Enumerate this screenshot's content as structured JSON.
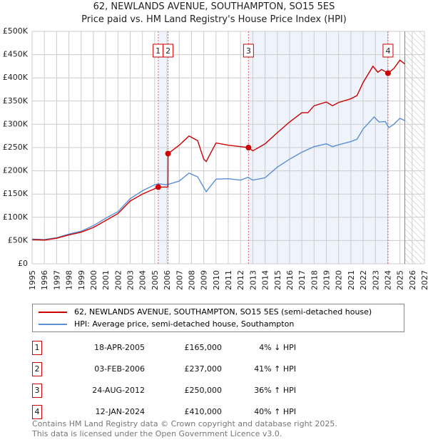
{
  "chart_data": {
    "type": "line",
    "title": "62, NEWLANDS AVENUE, SOUTHAMPTON, SO15 5ES",
    "subtitle": "Price paid vs. HM Land Registry's House Price Index (HPI)",
    "xlim": [
      1995,
      2027
    ],
    "ylim": [
      0,
      500000
    ],
    "x_ticks": [
      "1995",
      "1996",
      "1997",
      "1998",
      "1999",
      "2000",
      "2001",
      "2002",
      "2003",
      "2004",
      "2005",
      "2006",
      "2007",
      "2008",
      "2009",
      "2010",
      "2011",
      "2012",
      "2013",
      "2014",
      "2015",
      "2016",
      "2017",
      "2018",
      "2019",
      "2020",
      "2021",
      "2022",
      "2023",
      "2024",
      "2025",
      "2026",
      "2027"
    ],
    "y_ticks": [
      {
        "v": 0,
        "l": "£0"
      },
      {
        "v": 50000,
        "l": "£50K"
      },
      {
        "v": 100000,
        "l": "£100K"
      },
      {
        "v": 150000,
        "l": "£150K"
      },
      {
        "v": 200000,
        "l": "£200K"
      },
      {
        "v": 250000,
        "l": "£250K"
      },
      {
        "v": 300000,
        "l": "£300K"
      },
      {
        "v": 350000,
        "l": "£350K"
      },
      {
        "v": 400000,
        "l": "£400K"
      },
      {
        "v": 450000,
        "l": "£450K"
      },
      {
        "v": 500000,
        "l": "£500K"
      }
    ],
    "grid": true,
    "series": [
      {
        "name": "62, NEWLANDS AVENUE, SOUTHAMPTON, SO15 5ES (semi-detached house)",
        "color": "#cc0000",
        "x": [
          1995,
          1996,
          1997,
          1998,
          1999,
          2000,
          2001,
          2002,
          2003,
          2004,
          2005.3,
          2006.08,
          2006.09,
          2007,
          2007.8,
          2008.5,
          2009.0,
          2009.2,
          2010,
          2011,
          2012,
          2012.65,
          2013,
          2014,
          2015,
          2016,
          2017,
          2017.5,
          2018,
          2019,
          2019.5,
          2020,
          2021,
          2021.5,
          2022,
          2022.8,
          2023.2,
          2023.5,
          2024.04,
          2024.5,
          2025,
          2025.4
        ],
        "y": [
          52000,
          51000,
          55000,
          62000,
          68000,
          78000,
          93000,
          108000,
          135000,
          150000,
          165000,
          165000,
          237000,
          255000,
          275000,
          265000,
          225000,
          220000,
          260000,
          255000,
          252000,
          250000,
          243000,
          258000,
          282000,
          305000,
          325000,
          325000,
          340000,
          348000,
          340000,
          347000,
          355000,
          362000,
          390000,
          425000,
          412000,
          418000,
          410000,
          420000,
          438000,
          430000
        ]
      },
      {
        "name": "HPI: Average price, semi-detached house, Southampton",
        "color": "#5b8fd4",
        "x": [
          1995,
          1996,
          1997,
          1998,
          1999,
          2000,
          2001,
          2002,
          2003,
          2004,
          2005,
          2005.3,
          2006,
          2007,
          2007.8,
          2008.5,
          2009.2,
          2010,
          2011,
          2012,
          2012.6,
          2013,
          2014,
          2015,
          2016,
          2017,
          2018,
          2019,
          2019.5,
          2020,
          2021,
          2021.5,
          2022,
          2022.9,
          2023.3,
          2023.8,
          2024.1,
          2024.5,
          2025,
          2025.4
        ],
        "y": [
          53000,
          52000,
          56000,
          64000,
          70000,
          82000,
          98000,
          112000,
          140000,
          157000,
          170000,
          172000,
          170000,
          178000,
          195000,
          187000,
          155000,
          182000,
          183000,
          180000,
          186000,
          180000,
          185000,
          208000,
          225000,
          240000,
          252000,
          258000,
          252000,
          256000,
          263000,
          268000,
          290000,
          316000,
          305000,
          306000,
          293000,
          300000,
          313000,
          308000
        ]
      }
    ],
    "sales": [
      {
        "n": "1",
        "x": 2005.29,
        "y": 165000,
        "date": "18-APR-2005",
        "price": "£165,000",
        "hpi": "4% ↓ HPI"
      },
      {
        "n": "2",
        "x": 2006.09,
        "y": 237000,
        "date": "03-FEB-2006",
        "price": "£237,000",
        "hpi": "41% ↑ HPI"
      },
      {
        "n": "3",
        "x": 2012.65,
        "y": 250000,
        "date": "24-AUG-2012",
        "price": "£250,000",
        "hpi": "36% ↑ HPI"
      },
      {
        "n": "4",
        "x": 2024.03,
        "y": 410000,
        "date": "12-JAN-2024",
        "price": "£410,000",
        "hpi": "40% ↑ HPI"
      }
    ],
    "data_end": 2025.4
  },
  "footer": {
    "line1": "Contains HM Land Registry data © Crown copyright and database right 2025.",
    "line2": "This data is licensed under the Open Government Licence v3.0."
  }
}
